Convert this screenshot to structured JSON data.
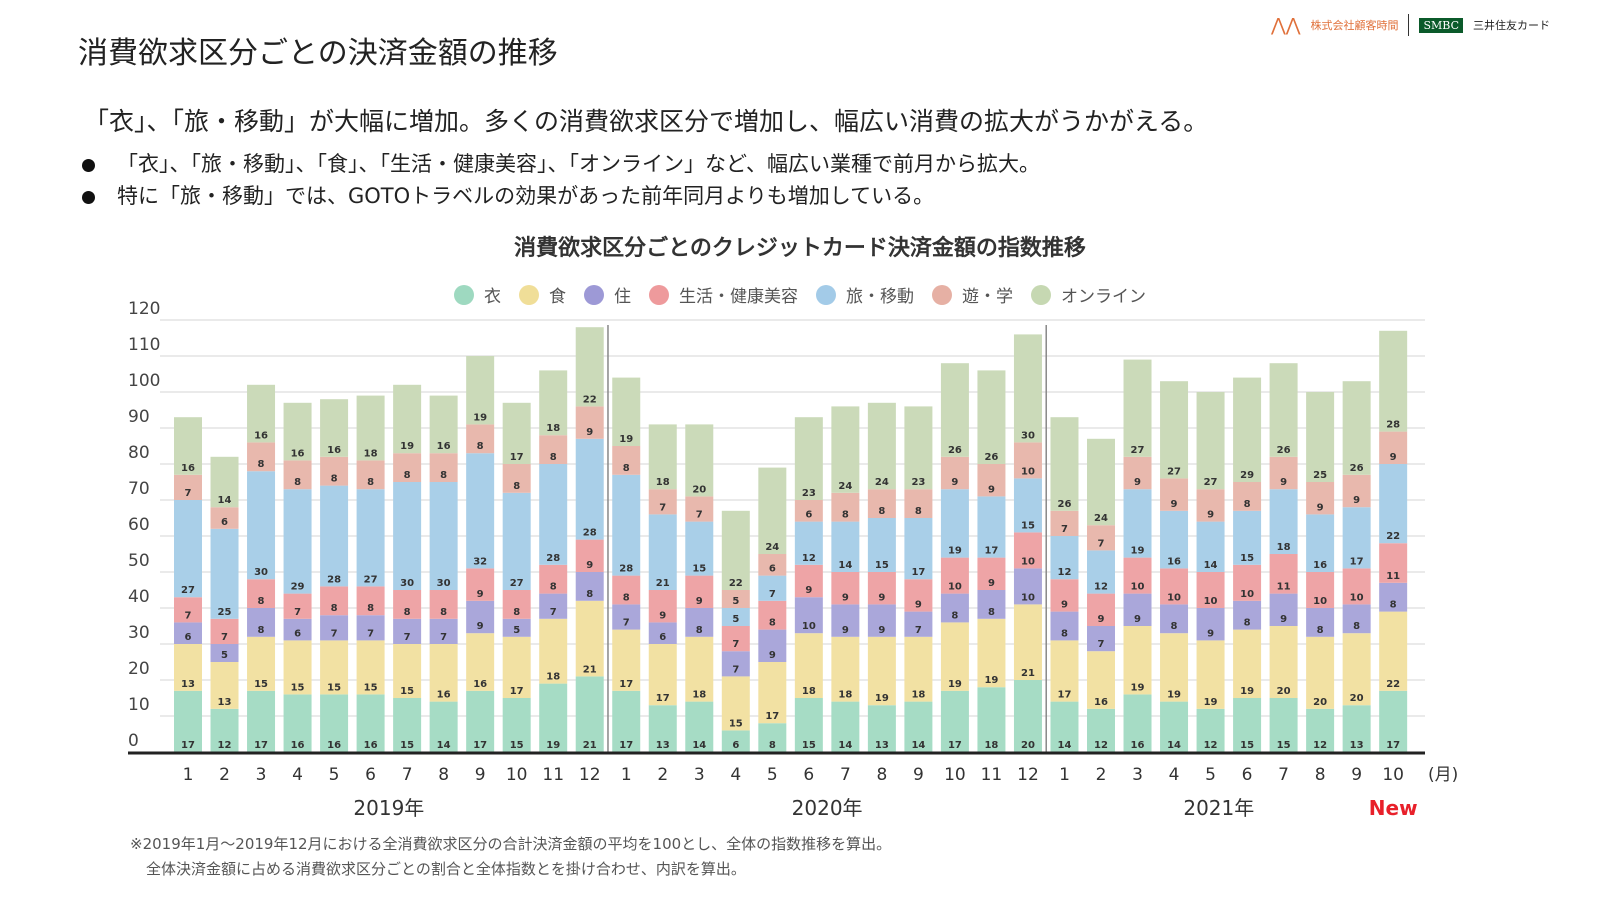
{
  "header": {
    "title": "消費欲求区分ごとの決済金額の推移",
    "logo_company": "株式会社顧客時間",
    "logo_smbc": "SMBC",
    "logo_card": "三井住友カード"
  },
  "headline": "「衣」、「旅・移動」が大幅に増加。多くの消費欲求区分で増加し、幅広い消費の拡大がうかがえる。",
  "bullets": [
    "「衣」、「旅・移動」、「食」、「生活・健康美容」、「オンライン」など、幅広い業種で前月から拡大。",
    "特に「旅・移動」では、GOTOトラベルの効果があった前年同月よりも増加している。"
  ],
  "footnote": [
    "※2019年1月～2019年12月における全消費欲求区分の合計決済金額の平均を100とし、全体の指数推移を算出。",
    "全体決済金額に占める消費欲求区分ごとの割合と全体指数とを掛け合わせ、内訳を算出。"
  ],
  "chart_data": {
    "type": "bar",
    "stacked": true,
    "title": "消費欲求区分ごとのクレジットカード決済金額の指数推移",
    "x_unit_label": "(月)",
    "new_label": "New",
    "year_labels": [
      "2019年",
      "2020年",
      "2021年"
    ],
    "categories": [
      "1",
      "2",
      "3",
      "4",
      "5",
      "6",
      "7",
      "8",
      "9",
      "10",
      "11",
      "12",
      "1",
      "2",
      "3",
      "4",
      "5",
      "6",
      "7",
      "8",
      "9",
      "10",
      "11",
      "12",
      "1",
      "2",
      "3",
      "4",
      "5",
      "6",
      "7",
      "8",
      "9",
      "10"
    ],
    "ylim": [
      0,
      120
    ],
    "yticks": [
      0,
      10,
      20,
      30,
      40,
      50,
      60,
      70,
      80,
      90,
      100,
      110,
      120
    ],
    "grid": true,
    "legend_position": "top",
    "series": [
      {
        "name": "衣",
        "color": "#a6dcc5",
        "dot": "#9ed9c0",
        "values": [
          17,
          12,
          17,
          16,
          16,
          16,
          15,
          14,
          17,
          15,
          19,
          21,
          17,
          13,
          14,
          6,
          8,
          15,
          14,
          13,
          14,
          17,
          18,
          20,
          14,
          12,
          16,
          14,
          12,
          15,
          15,
          12,
          13,
          17
        ]
      },
      {
        "name": "食",
        "color": "#f2e1a3",
        "dot": "#f0de98",
        "values": [
          13,
          13,
          15,
          15,
          15,
          15,
          15,
          16,
          16,
          17,
          18,
          21,
          17,
          17,
          18,
          15,
          17,
          18,
          18,
          19,
          18,
          19,
          19,
          21,
          17,
          16,
          19,
          19,
          19,
          19,
          20,
          20,
          20,
          22
        ]
      },
      {
        "name": "住",
        "color": "#aaa7da",
        "dot": "#9d99d6",
        "values": [
          6,
          5,
          8,
          6,
          7,
          7,
          7,
          7,
          9,
          5,
          7,
          8,
          7,
          6,
          8,
          7,
          9,
          10,
          9,
          9,
          7,
          8,
          8,
          10,
          8,
          7,
          9,
          8,
          9,
          8,
          9,
          8,
          8,
          8
        ]
      },
      {
        "name": "生活・健康美容",
        "color": "#eea4a6",
        "dot": "#ee9a9c",
        "values": [
          7,
          7,
          8,
          7,
          8,
          8,
          8,
          8,
          9,
          8,
          8,
          9,
          8,
          9,
          9,
          7,
          8,
          9,
          9,
          9,
          9,
          10,
          9,
          10,
          9,
          9,
          10,
          10,
          10,
          10,
          11,
          10,
          10,
          11
        ]
      },
      {
        "name": "旅・移動",
        "color": "#a9cfe8",
        "dot": "#a3cbe8",
        "values": [
          27,
          25,
          30,
          29,
          28,
          27,
          30,
          30,
          32,
          27,
          28,
          28,
          28,
          21,
          15,
          5,
          7,
          12,
          14,
          15,
          17,
          19,
          17,
          15,
          12,
          12,
          19,
          16,
          14,
          15,
          18,
          16,
          17,
          22
        ]
      },
      {
        "name": "遊・学",
        "color": "#e8b8ad",
        "dot": "#e6b0a4",
        "values": [
          7,
          6,
          8,
          8,
          8,
          8,
          8,
          8,
          8,
          8,
          8,
          9,
          8,
          7,
          7,
          5,
          6,
          6,
          8,
          8,
          8,
          9,
          9,
          10,
          7,
          7,
          9,
          9,
          9,
          8,
          9,
          9,
          9,
          9
        ]
      },
      {
        "name": "オンライン",
        "color": "#cbdab9",
        "dot": "#c6d8b2",
        "values": [
          16,
          14,
          16,
          16,
          16,
          18,
          19,
          16,
          19,
          17,
          18,
          22,
          19,
          18,
          20,
          22,
          24,
          23,
          24,
          24,
          23,
          26,
          26,
          30,
          26,
          24,
          27,
          27,
          27,
          29,
          26,
          25,
          26,
          28
        ]
      }
    ]
  }
}
